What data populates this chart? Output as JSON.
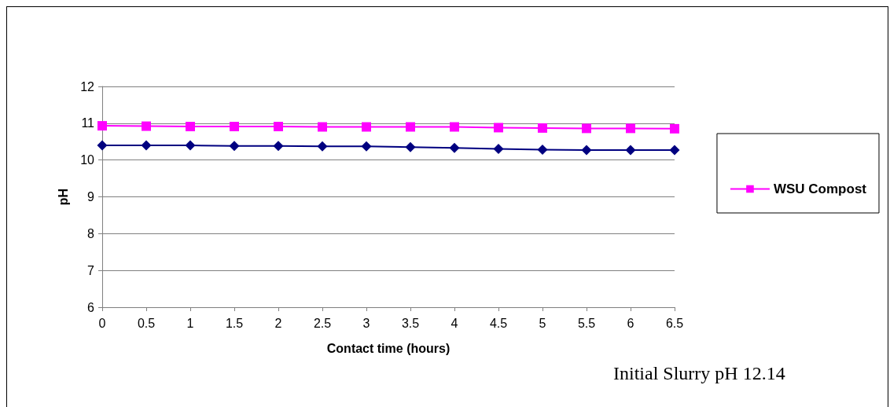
{
  "chart_data": {
    "type": "line",
    "xlabel": "Contact time (hours)",
    "ylabel": "pH",
    "x": [
      0,
      0.5,
      1,
      1.5,
      2,
      2.5,
      3,
      3.5,
      4,
      4.5,
      5,
      5.5,
      6,
      6.5
    ],
    "series": [
      {
        "color": "#000080",
        "marker": "diamond",
        "values": [
          10.4,
          10.4,
          10.4,
          10.38,
          10.38,
          10.37,
          10.37,
          10.35,
          10.33,
          10.3,
          10.28,
          10.27,
          10.27,
          10.27
        ]
      },
      {
        "name": "WSU Compost",
        "color": "#ff00ff",
        "marker": "square",
        "values": [
          10.93,
          10.92,
          10.91,
          10.91,
          10.91,
          10.9,
          10.9,
          10.9,
          10.9,
          10.88,
          10.87,
          10.86,
          10.86,
          10.85
        ]
      }
    ],
    "xlim": [
      0,
      6.5
    ],
    "xticks": [
      0,
      0.5,
      1,
      1.5,
      2,
      2.5,
      3,
      3.5,
      4,
      4.5,
      5,
      5.5,
      6,
      6.5
    ],
    "ylim": [
      6,
      12
    ],
    "yticks": [
      6,
      7,
      8,
      9,
      10,
      11,
      12
    ],
    "grid": "y",
    "legend": "right",
    "line_style": "solid",
    "annotations": [
      "Initial Slurry pH 12.14"
    ]
  }
}
